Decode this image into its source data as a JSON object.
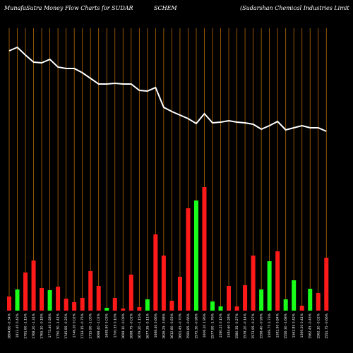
{
  "chart_data": {
    "type": "bar-line",
    "title_parts": [
      "MunafaSutra  Money Flow  Charts for SUDAR",
      "SCHEM",
      "(Sudarshan  Chemical Industries Limit"
    ],
    "x_labels": [
      "1804.80 -0.34%",
      "1812.45 0.42%",
      "1791.60 -1.15%",
      "1768.20 -1.31%",
      "1765.10 -0.18%",
      "1775.40 0.58%",
      "1750.30 -1.41%",
      "1745.85 -0.25%",
      "1746.20 0.02%",
      "1733.15 -0.75%",
      "1715.90 -1.00%",
      "1698.40 -1.02%",
      "1698.90 0.03%",
      "1700.55 0.10%",
      "1699.10 -0.09%",
      "1698.75 -0.02%",
      "1679.20 -1.15%",
      "1677.35 -0.11%",
      "1688.40 0.66%",
      "1626.25 -3.68%",
      "1612.80 -0.83%",
      "1601.45 -0.70%",
      "1590.85 -0.66%",
      "1575.30 -0.98%",
      "1606.10 1.96%",
      "1577.90 -1.76%",
      "1580.25 0.15%",
      "1584.60 0.28%",
      "1580.35 -0.27%",
      "1578.20 -0.14%",
      "1573.95 -0.27%",
      "1558.40 -0.99%",
      "1569.75 0.73%",
      "1582.90 0.84%",
      "1556.30 -1.68%",
      "1562.85 0.42%",
      "1569.20 0.41%",
      "1562.45 -0.43%",
      "1562.10 -0.02%",
      "1551.75 -0.66%"
    ],
    "values": [
      20,
      30,
      54,
      71,
      32,
      29,
      34,
      17,
      12,
      18,
      56,
      35,
      4,
      18,
      3,
      51,
      5,
      16,
      108,
      78,
      14,
      48,
      145,
      156,
      175,
      13,
      6,
      35,
      6,
      36,
      78,
      30,
      70,
      84,
      16,
      43,
      7,
      31,
      25,
      75
    ],
    "bar_colors": [
      "#ff1a1a",
      "#1aff1a",
      "#ff1a1a",
      "#ff1a1a",
      "#ff1a1a",
      "#1aff1a",
      "#ff1a1a",
      "#ff1a1a",
      "#ff1a1a",
      "#ff1a1a",
      "#ff1a1a",
      "#ff1a1a",
      "#1aff1a",
      "#ff1a1a",
      "#ff1a1a",
      "#ff1a1a",
      "#ff1a1a",
      "#1aff1a",
      "#ff1a1a",
      "#ff1a1a",
      "#ff1a1a",
      "#ff1a1a",
      "#ff1a1a",
      "#1aff1a",
      "#ff1a1a",
      "#1aff1a",
      "#1aff1a",
      "#ff1a1a",
      "#ff1a1a",
      "#ff1a1a",
      "#ff1a1a",
      "#1aff1a",
      "#1aff1a",
      "#ff1a1a",
      "#1aff1a",
      "#1aff1a",
      "#ff1a1a",
      "#1aff1a",
      "#ff1a1a",
      "#ff1a1a"
    ],
    "line_values": [
      368,
      373,
      362,
      352,
      351,
      356,
      345,
      343,
      343,
      337,
      329,
      321,
      321,
      322,
      321,
      321,
      312,
      311,
      316,
      288,
      282,
      277,
      272,
      265,
      279,
      266,
      267,
      269,
      267,
      266,
      264,
      257,
      262,
      268,
      256,
      259,
      262,
      259,
      259,
      254
    ],
    "line_color": "#ffffff",
    "grid_color": "#b86a00",
    "ylim": [
      0,
      380
    ]
  }
}
